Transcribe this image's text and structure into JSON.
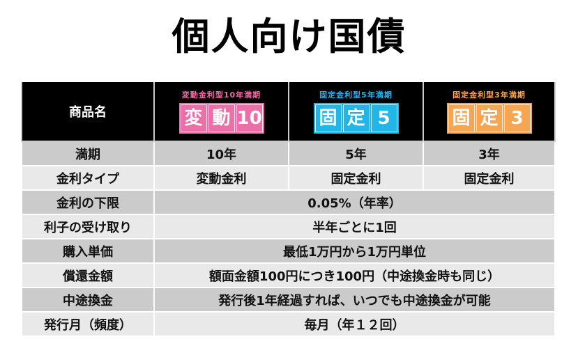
{
  "title": "個人向け国債",
  "header": {
    "label": "商品名",
    "products": [
      {
        "subtitle": "変動金利型10年満期",
        "badge": [
          "変",
          "動",
          "10"
        ],
        "color": "#ec6fa8"
      },
      {
        "subtitle": "固定金利型5年満期",
        "badge": [
          "固",
          "定",
          "5"
        ],
        "color": "#22b6e8"
      },
      {
        "subtitle": "固定金利型3年満期",
        "badge": [
          "固",
          "定",
          "3"
        ],
        "color": "#f5a653"
      }
    ]
  },
  "rows": [
    {
      "label": "満期",
      "values": [
        "10年",
        "5年",
        "3年"
      ]
    },
    {
      "label": "金利タイプ",
      "values": [
        "変動金利",
        "固定金利",
        "固定金利"
      ]
    },
    {
      "label": "金利の下限",
      "value": "0.05%（年率）"
    },
    {
      "label": "利子の受け取り",
      "value": "半年ごとに1回"
    },
    {
      "label": "購入単価",
      "value": "最低1万円から1万円単位"
    },
    {
      "label": "償還金額",
      "value": "額面金額100円につき100円（中途換金時も同じ）"
    },
    {
      "label": "中途換金",
      "value": "発行後1年経過すれば、いつでも中途換金が可能"
    },
    {
      "label": "発行月（頻度）",
      "value": "毎月（年１２回）"
    }
  ]
}
